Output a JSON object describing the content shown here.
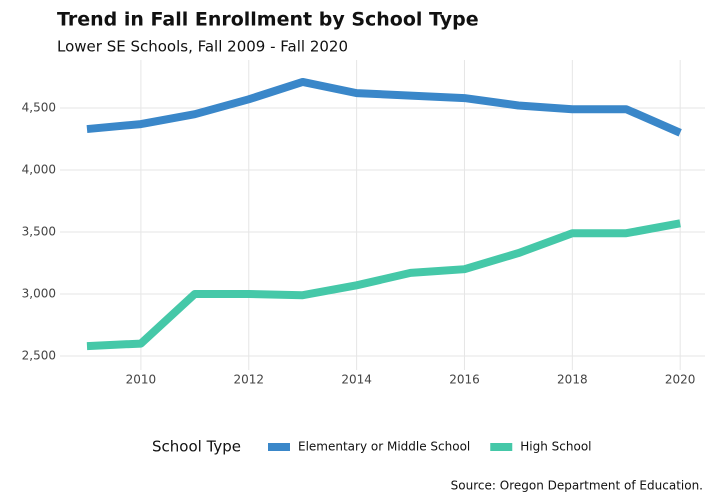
{
  "chart_data": {
    "type": "line",
    "title": "Trend in Fall Enrollment by School Type",
    "subtitle": "Lower SE Schools, Fall 2009 - Fall 2020",
    "x": [
      2009,
      2010,
      2011,
      2012,
      2013,
      2014,
      2015,
      2016,
      2017,
      2018,
      2019,
      2020
    ],
    "series": [
      {
        "name": "Elementary or Middle School",
        "color": "#3a87c9",
        "values": [
          4330,
          4370,
          4450,
          4570,
          4710,
          4620,
          4600,
          4580,
          4520,
          4490,
          4490,
          4300
        ]
      },
      {
        "name": "High School",
        "color": "#45c8a8",
        "values": [
          2580,
          2600,
          3000,
          3000,
          2990,
          3070,
          3170,
          3200,
          3330,
          3490,
          3490,
          3570
        ]
      }
    ],
    "xlim": [
      2008.5,
      2020.46
    ],
    "xticks": [
      2010,
      2012,
      2014,
      2016,
      2018,
      2020
    ],
    "ylim": [
      2387,
      4887
    ],
    "yticks": [
      {
        "value": 2500,
        "label": "2,500"
      },
      {
        "value": 3000,
        "label": "3,000"
      },
      {
        "value": 3500,
        "label": "3,500"
      },
      {
        "value": 4000,
        "label": "4,000"
      },
      {
        "value": 4500,
        "label": "4,500"
      }
    ],
    "grid": true,
    "legend_title": "School Type",
    "legend_position": "bottom",
    "source": "Source: Oregon Department of Education."
  }
}
